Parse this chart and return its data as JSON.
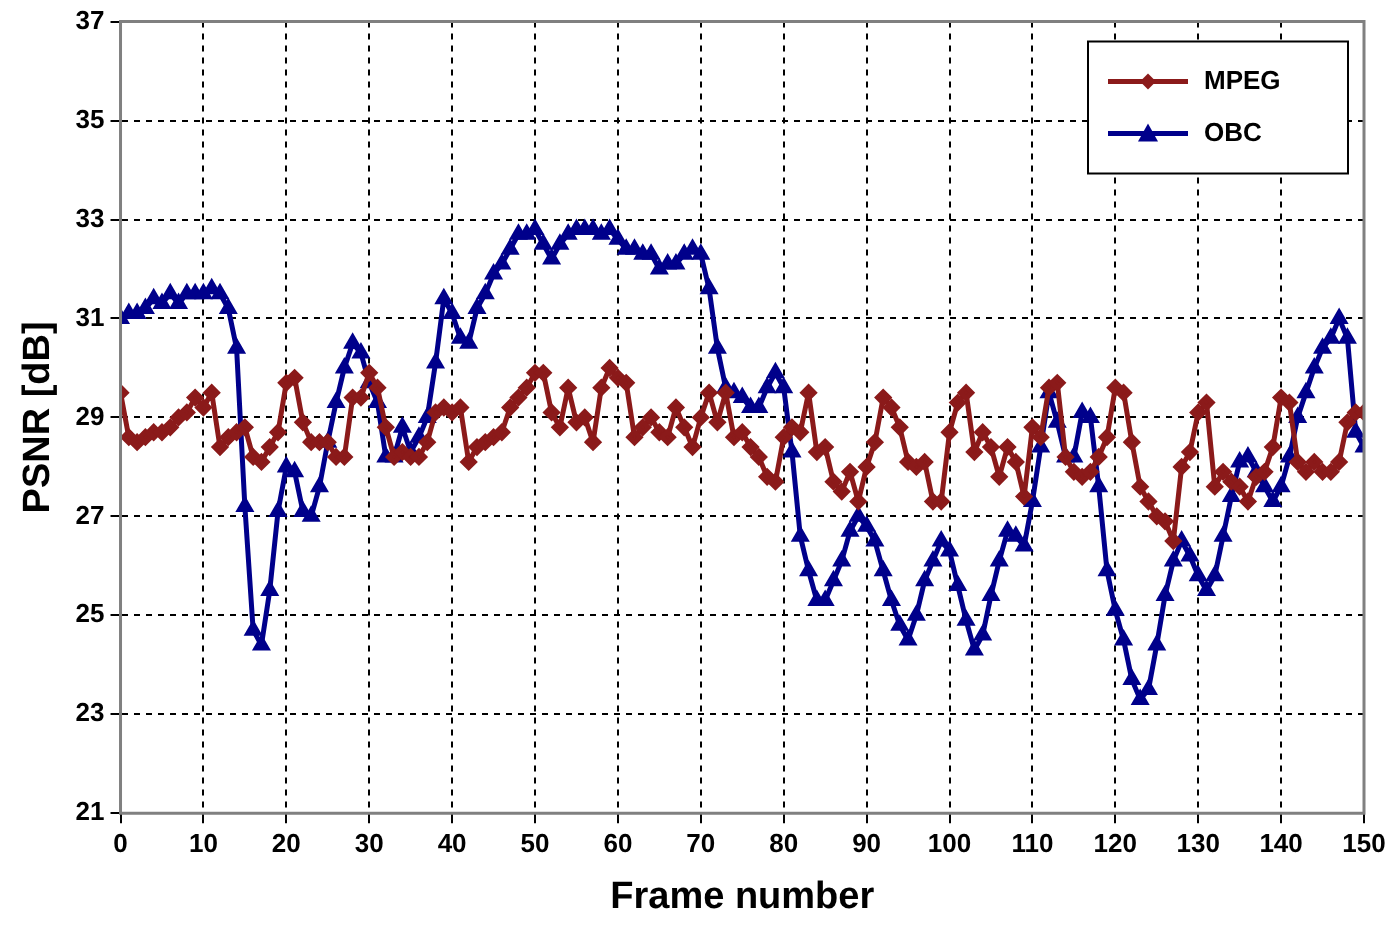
{
  "chart_data": {
    "type": "line",
    "xlabel": "Frame number",
    "ylabel": "PSNR [dB]",
    "x": [
      0,
      1,
      2,
      3,
      4,
      5,
      6,
      7,
      8,
      9,
      10,
      11,
      12,
      13,
      14,
      15,
      16,
      17,
      18,
      19,
      20,
      21,
      22,
      23,
      24,
      25,
      26,
      27,
      28,
      29,
      30,
      31,
      32,
      33,
      34,
      35,
      36,
      37,
      38,
      39,
      40,
      41,
      42,
      43,
      44,
      45,
      46,
      47,
      48,
      49,
      50,
      51,
      52,
      53,
      54,
      55,
      56,
      57,
      58,
      59,
      60,
      61,
      62,
      63,
      64,
      65,
      66,
      67,
      68,
      69,
      70,
      71,
      72,
      73,
      74,
      75,
      76,
      77,
      78,
      79,
      80,
      81,
      82,
      83,
      84,
      85,
      86,
      87,
      88,
      89,
      90,
      91,
      92,
      93,
      94,
      95,
      96,
      97,
      98,
      99,
      100,
      101,
      102,
      103,
      104,
      105,
      106,
      107,
      108,
      109,
      110,
      111,
      112,
      113,
      114,
      115,
      116,
      117,
      118,
      119,
      120,
      121,
      122,
      123,
      124,
      125,
      126,
      127,
      128,
      129,
      130,
      131,
      132,
      133,
      134,
      135,
      136,
      137,
      138,
      139,
      140,
      141,
      142,
      143,
      144,
      145,
      146,
      147,
      148,
      149,
      150
    ],
    "series": [
      {
        "name": "MPEG",
        "color": "#8b1a1a",
        "marker": "diamond",
        "values": [
          29.5,
          28.6,
          28.5,
          28.6,
          28.7,
          28.7,
          28.8,
          29.0,
          29.1,
          29.4,
          29.2,
          29.5,
          28.4,
          28.6,
          28.7,
          28.8,
          28.2,
          28.1,
          28.4,
          28.7,
          29.7,
          29.8,
          28.9,
          28.5,
          28.5,
          28.5,
          28.2,
          28.2,
          29.4,
          29.4,
          29.9,
          29.6,
          28.8,
          28.2,
          28.3,
          28.2,
          28.2,
          28.5,
          29.1,
          29.2,
          29.1,
          29.2,
          28.1,
          28.4,
          28.5,
          28.6,
          28.7,
          29.2,
          29.4,
          29.6,
          29.9,
          29.9,
          29.1,
          28.8,
          29.6,
          28.9,
          29.0,
          28.5,
          29.6,
          30.0,
          29.8,
          29.7,
          28.6,
          28.8,
          29.0,
          28.7,
          28.6,
          29.2,
          28.8,
          28.4,
          29.0,
          29.5,
          28.9,
          29.5,
          28.6,
          28.7,
          28.4,
          28.2,
          27.8,
          27.7,
          28.6,
          28.8,
          28.7,
          29.5,
          28.3,
          28.4,
          27.7,
          27.5,
          27.9,
          27.3,
          28.0,
          28.5,
          29.4,
          29.2,
          28.8,
          28.1,
          28.0,
          28.1,
          27.3,
          27.3,
          28.7,
          29.3,
          29.5,
          28.3,
          28.7,
          28.4,
          27.8,
          28.4,
          28.1,
          27.4,
          28.8,
          28.6,
          29.6,
          29.7,
          28.2,
          27.9,
          27.8,
          27.9,
          28.2,
          28.6,
          29.6,
          29.5,
          28.5,
          27.6,
          27.3,
          27.0,
          26.9,
          26.5,
          28.0,
          28.3,
          29.1,
          29.3,
          27.6,
          27.9,
          27.7,
          27.6,
          27.3,
          27.8,
          27.9,
          28.4,
          29.4,
          29.3,
          28.1,
          27.9,
          28.1,
          27.9,
          27.9,
          28.1,
          28.9,
          29.1,
          29.1
        ]
      },
      {
        "name": "OBC",
        "color": "#00008b",
        "marker": "triangle",
        "values": [
          31.0,
          31.1,
          31.1,
          31.2,
          31.4,
          31.3,
          31.5,
          31.3,
          31.5,
          31.5,
          31.5,
          31.6,
          31.5,
          31.2,
          30.4,
          27.2,
          24.7,
          24.4,
          25.5,
          27.1,
          28.0,
          27.9,
          27.1,
          27.0,
          27.6,
          28.5,
          29.3,
          30.0,
          30.5,
          30.3,
          29.7,
          29.3,
          28.2,
          28.2,
          28.8,
          28.3,
          28.6,
          29.0,
          30.1,
          31.4,
          31.1,
          30.6,
          30.5,
          31.2,
          31.5,
          31.9,
          32.1,
          32.4,
          32.7,
          32.7,
          32.8,
          32.5,
          32.2,
          32.5,
          32.7,
          32.8,
          32.8,
          32.8,
          32.7,
          32.8,
          32.6,
          32.4,
          32.4,
          32.3,
          32.3,
          32.0,
          32.1,
          32.1,
          32.3,
          32.4,
          32.3,
          31.6,
          30.4,
          29.6,
          29.5,
          29.4,
          29.2,
          29.2,
          29.6,
          29.9,
          29.6,
          28.3,
          26.6,
          25.9,
          25.3,
          25.3,
          25.7,
          26.1,
          26.7,
          27.0,
          26.8,
          26.5,
          25.9,
          25.3,
          24.8,
          24.5,
          25.0,
          25.7,
          26.1,
          26.5,
          26.3,
          25.6,
          24.9,
          24.3,
          24.6,
          25.4,
          26.1,
          26.7,
          26.6,
          26.4,
          27.3,
          28.4,
          29.5,
          28.9,
          28.2,
          28.2,
          29.1,
          29.0,
          27.6,
          25.9,
          25.1,
          24.5,
          23.7,
          23.3,
          23.5,
          24.4,
          25.4,
          26.1,
          26.5,
          26.2,
          25.8,
          25.5,
          25.8,
          26.6,
          27.4,
          28.1,
          28.2,
          27.9,
          27.6,
          27.3,
          27.6,
          28.2,
          29.0,
          29.5,
          30.0,
          30.4,
          30.6,
          31.0,
          30.6,
          28.7,
          28.4
        ]
      }
    ],
    "xlim": [
      0,
      150
    ],
    "xticks": [
      0,
      10,
      20,
      30,
      40,
      50,
      60,
      70,
      80,
      90,
      100,
      110,
      120,
      130,
      140,
      150
    ],
    "ylim": [
      21,
      37
    ],
    "yticks": [
      21,
      23,
      25,
      27,
      29,
      31,
      33,
      35,
      37
    ],
    "grid": true,
    "legend": "top right",
    "line_style": "solid"
  }
}
